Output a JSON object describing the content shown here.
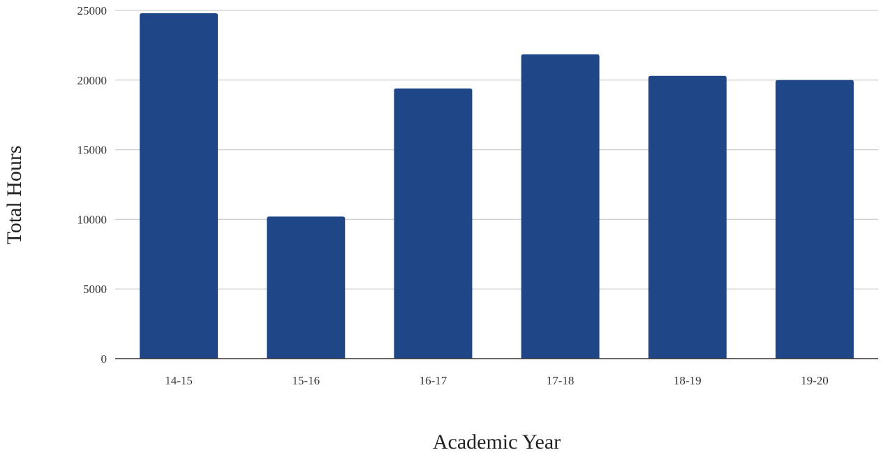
{
  "chart_data": {
    "type": "bar",
    "title": "",
    "xlabel": "Academic Year",
    "ylabel": "Total Hours",
    "categories": [
      "14-15",
      "15-16",
      "16-17",
      "17-18",
      "18-19",
      "19-20"
    ],
    "series": [
      {
        "values": [
          24800,
          10200,
          19400,
          21850,
          20300,
          20000
        ],
        "color": "#1f4788"
      }
    ],
    "ylim": [
      0,
      25000
    ],
    "yticks": [
      0,
      5000,
      10000,
      15000,
      20000,
      25000
    ],
    "grid": true,
    "legend": "none"
  },
  "colors": {
    "bar": "#1f4788",
    "grid": "#cccccc",
    "axis": "#333333"
  }
}
